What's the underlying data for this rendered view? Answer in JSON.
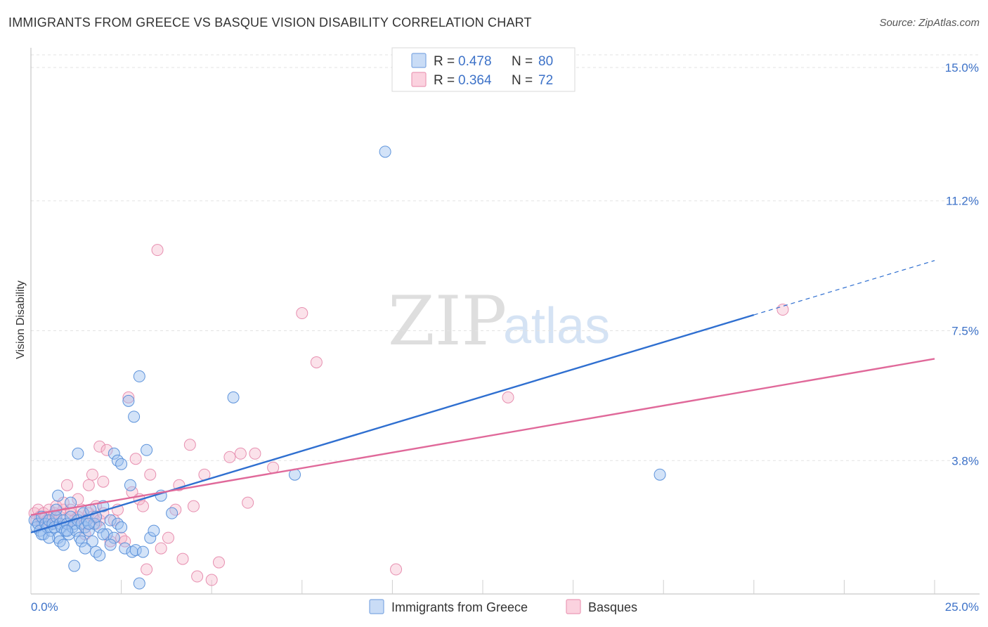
{
  "header": {
    "title": "IMMIGRANTS FROM GREECE VS BASQUE VISION DISABILITY CORRELATION CHART",
    "source": "Source: ZipAtlas.com"
  },
  "watermark": {
    "zip": "ZIP",
    "atlas": "atlas"
  },
  "legend": {
    "rows": [
      {
        "r_label": "R =",
        "r_value": "0.478",
        "n_label": "N =",
        "n_value": "80",
        "color": "#9ec2ef"
      },
      {
        "r_label": "R =",
        "r_value": "0.364",
        "n_label": "N =",
        "n_value": "72",
        "color": "#f6b6cb"
      }
    ]
  },
  "bottom_legend": [
    {
      "label": "Immigrants from Greece",
      "color": "#9ec2ef"
    },
    {
      "label": "Basques",
      "color": "#f6b6cb"
    }
  ],
  "chart_data": {
    "type": "scatter",
    "xlabel": "",
    "ylabel": "Vision Disability",
    "xlim": [
      0,
      25
    ],
    "ylim": [
      0,
      15
    ],
    "x_tick_labels": [
      "0.0%",
      "25.0%"
    ],
    "y_ticks": [
      {
        "value": 3.8,
        "label": "3.8%"
      },
      {
        "value": 7.5,
        "label": "7.5%"
      },
      {
        "value": 11.2,
        "label": "11.2%"
      },
      {
        "value": 15.0,
        "label": "15.0%"
      }
    ],
    "grid": true,
    "colors": {
      "greece": "#2f6fd0",
      "basques": "#e0699a"
    },
    "series": [
      {
        "name": "Immigrants from Greece",
        "r": 0.478,
        "n": 80,
        "trend": {
          "x0": 0,
          "y0": 1.75,
          "x1": 20,
          "y1": 7.95,
          "dash_to_x": 25,
          "dash_to_y": 9.5
        },
        "points": [
          [
            0.1,
            2.1
          ],
          [
            0.15,
            1.9
          ],
          [
            0.2,
            2.0
          ],
          [
            0.25,
            1.8
          ],
          [
            0.3,
            2.2
          ],
          [
            0.35,
            1.7
          ],
          [
            0.4,
            2.0
          ],
          [
            0.45,
            1.9
          ],
          [
            0.5,
            2.1
          ],
          [
            0.55,
            1.8
          ],
          [
            0.6,
            2.0
          ],
          [
            0.65,
            1.9
          ],
          [
            0.7,
            2.2
          ],
          [
            0.75,
            1.6
          ],
          [
            0.8,
            2.0
          ],
          [
            0.85,
            1.9
          ],
          [
            0.9,
            2.1
          ],
          [
            0.95,
            1.8
          ],
          [
            1.0,
            2.0
          ],
          [
            1.05,
            1.7
          ],
          [
            1.1,
            2.2
          ],
          [
            1.15,
            1.9
          ],
          [
            1.2,
            2.0
          ],
          [
            1.25,
            1.8
          ],
          [
            1.3,
            2.1
          ],
          [
            1.35,
            1.6
          ],
          [
            1.4,
            2.0
          ],
          [
            1.45,
            2.3
          ],
          [
            1.5,
            1.9
          ],
          [
            1.55,
            2.1
          ],
          [
            1.6,
            1.8
          ],
          [
            1.65,
            2.4
          ],
          [
            1.7,
            1.5
          ],
          [
            1.75,
            2.0
          ],
          [
            1.8,
            2.2
          ],
          [
            1.9,
            1.9
          ],
          [
            2.0,
            2.5
          ],
          [
            2.1,
            1.7
          ],
          [
            2.2,
            2.1
          ],
          [
            2.3,
            1.6
          ],
          [
            2.4,
            2.0
          ],
          [
            2.5,
            1.9
          ],
          [
            0.3,
            1.7
          ],
          [
            0.5,
            1.6
          ],
          [
            0.7,
            2.4
          ],
          [
            0.75,
            2.8
          ],
          [
            0.8,
            1.5
          ],
          [
            0.9,
            1.4
          ],
          [
            1.0,
            1.8
          ],
          [
            1.1,
            2.6
          ],
          [
            1.2,
            0.8
          ],
          [
            1.3,
            4.0
          ],
          [
            1.4,
            1.5
          ],
          [
            1.5,
            1.3
          ],
          [
            1.6,
            2.0
          ],
          [
            1.8,
            1.2
          ],
          [
            1.9,
            1.1
          ],
          [
            2.0,
            1.7
          ],
          [
            2.2,
            1.4
          ],
          [
            2.3,
            4.0
          ],
          [
            2.4,
            3.8
          ],
          [
            2.5,
            3.7
          ],
          [
            2.6,
            1.3
          ],
          [
            2.7,
            5.5
          ],
          [
            2.75,
            3.1
          ],
          [
            2.8,
            1.2
          ],
          [
            2.85,
            5.05
          ],
          [
            2.9,
            1.25
          ],
          [
            3.0,
            6.2
          ],
          [
            3.1,
            1.2
          ],
          [
            3.2,
            4.1
          ],
          [
            3.3,
            1.6
          ],
          [
            3.4,
            1.8
          ],
          [
            3.6,
            2.8
          ],
          [
            3.9,
            2.3
          ],
          [
            5.6,
            5.6
          ],
          [
            7.3,
            3.4
          ],
          [
            9.8,
            12.6
          ],
          [
            17.4,
            3.4
          ],
          [
            3.0,
            0.3
          ]
        ]
      },
      {
        "name": "Basques",
        "r": 0.364,
        "n": 72,
        "trend": {
          "x0": 0,
          "y0": 2.25,
          "x1": 25,
          "y1": 6.7
        },
        "points": [
          [
            0.1,
            2.3
          ],
          [
            0.15,
            2.1
          ],
          [
            0.2,
            2.4
          ],
          [
            0.25,
            2.2
          ],
          [
            0.3,
            2.0
          ],
          [
            0.35,
            2.3
          ],
          [
            0.4,
            2.2
          ],
          [
            0.45,
            2.1
          ],
          [
            0.5,
            2.4
          ],
          [
            0.55,
            2.2
          ],
          [
            0.6,
            2.0
          ],
          [
            0.65,
            2.3
          ],
          [
            0.7,
            2.1
          ],
          [
            0.8,
            2.2
          ],
          [
            0.9,
            2.4
          ],
          [
            1.0,
            2.0
          ],
          [
            1.1,
            2.3
          ],
          [
            1.2,
            2.1
          ],
          [
            1.3,
            2.2
          ],
          [
            1.4,
            2.4
          ],
          [
            1.5,
            2.0
          ],
          [
            1.6,
            2.3
          ],
          [
            1.7,
            2.2
          ],
          [
            1.8,
            2.5
          ],
          [
            1.9,
            2.1
          ],
          [
            2.0,
            2.3
          ],
          [
            0.7,
            2.5
          ],
          [
            0.9,
            2.6
          ],
          [
            1.0,
            3.1
          ],
          [
            1.1,
            2.4
          ],
          [
            1.3,
            2.7
          ],
          [
            1.5,
            1.7
          ],
          [
            1.6,
            3.1
          ],
          [
            1.7,
            3.4
          ],
          [
            1.8,
            2.0
          ],
          [
            1.9,
            4.2
          ],
          [
            2.0,
            3.2
          ],
          [
            2.1,
            4.1
          ],
          [
            2.2,
            1.5
          ],
          [
            2.3,
            2.1
          ],
          [
            2.4,
            2.4
          ],
          [
            2.5,
            1.6
          ],
          [
            2.6,
            1.5
          ],
          [
            2.7,
            5.6
          ],
          [
            2.8,
            2.9
          ],
          [
            2.9,
            3.85
          ],
          [
            3.0,
            2.7
          ],
          [
            3.1,
            2.5
          ],
          [
            3.2,
            0.7
          ],
          [
            3.3,
            3.4
          ],
          [
            3.5,
            9.8
          ],
          [
            3.6,
            1.3
          ],
          [
            3.8,
            1.6
          ],
          [
            4.0,
            2.4
          ],
          [
            4.1,
            3.1
          ],
          [
            4.2,
            1.0
          ],
          [
            4.4,
            4.25
          ],
          [
            4.5,
            2.5
          ],
          [
            4.6,
            0.5
          ],
          [
            4.8,
            3.4
          ],
          [
            5.0,
            0.4
          ],
          [
            5.2,
            0.9
          ],
          [
            5.5,
            3.9
          ],
          [
            5.8,
            4.0
          ],
          [
            6.0,
            2.6
          ],
          [
            6.2,
            4.0
          ],
          [
            6.7,
            3.6
          ],
          [
            7.5,
            8.0
          ],
          [
            7.9,
            6.6
          ],
          [
            10.1,
            0.7
          ],
          [
            13.2,
            5.6
          ],
          [
            20.8,
            8.1
          ]
        ]
      }
    ]
  }
}
